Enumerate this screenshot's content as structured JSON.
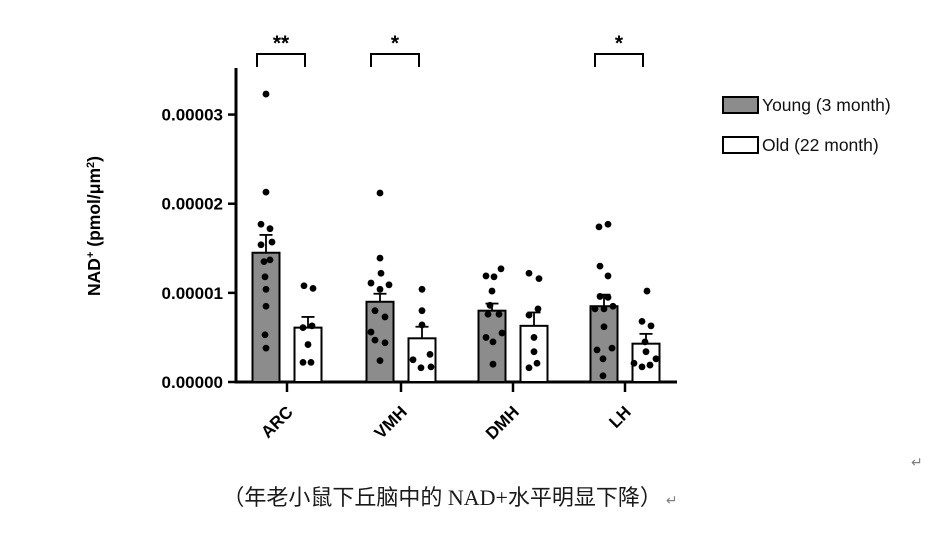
{
  "chart_data": {
    "type": "bar",
    "subtype": "grouped-bar-with-scatter-and-error-bars",
    "title": "",
    "xlabel": "",
    "ylabel": "NAD+ (pmol/μm²)",
    "ylabel_parts": [
      [
        "NAD",
        false
      ],
      [
        "+",
        true
      ],
      [
        " (pmol/μm",
        false
      ],
      [
        "2",
        true
      ],
      [
        ")",
        false
      ]
    ],
    "categories": [
      "ARC",
      "VMH",
      "DMH",
      "LH"
    ],
    "ylim": [
      0,
      3.5e-05
    ],
    "yticks": [
      {
        "value": 0.0,
        "label": "0.00000"
      },
      {
        "value": 1e-05,
        "label": "0.00001"
      },
      {
        "value": 2e-05,
        "label": "0.00002"
      },
      {
        "value": 3e-05,
        "label": "0.00003"
      }
    ],
    "grid": false,
    "legend_position": "right",
    "series": [
      {
        "name": "Young (3 month)",
        "fill": "#8c8c8c",
        "means": [
          1.45e-05,
          9e-06,
          8e-06,
          8.5e-06
        ],
        "sem": [
          2e-06,
          9e-07,
          8e-07,
          1.3e-06
        ],
        "points": [
          [
            [
              0,
              3.23e-05
            ],
            [
              0,
              2.13e-05
            ],
            [
              -5,
              1.77e-05
            ],
            [
              4,
              1.72e-05
            ],
            [
              6,
              1.57e-05
            ],
            [
              -5,
              1.54e-05
            ],
            [
              4,
              1.37e-05
            ],
            [
              -2,
              1.35e-05
            ],
            [
              -1,
              1.18e-05
            ],
            [
              0,
              1.04e-05
            ],
            [
              0,
              8.5e-06
            ],
            [
              -1,
              5.3e-06
            ],
            [
              0,
              3.8e-06
            ]
          ],
          [
            [
              0,
              2.12e-05
            ],
            [
              0,
              1.39e-05
            ],
            [
              1,
              1.22e-05
            ],
            [
              -9,
              1.11e-05
            ],
            [
              9,
              1.09e-05
            ],
            [
              0,
              1.04e-05
            ],
            [
              -5,
              8e-06
            ],
            [
              5,
              7.3e-06
            ],
            [
              -9,
              5.6e-06
            ],
            [
              -5,
              4.7e-06
            ],
            [
              5,
              4.4e-06
            ],
            [
              0,
              2.4e-06
            ]
          ],
          [
            [
              9,
              1.27e-05
            ],
            [
              -6,
              1.19e-05
            ],
            [
              2,
              1.18e-05
            ],
            [
              0,
              1.02e-05
            ],
            [
              -2,
              8.6e-06
            ],
            [
              -4,
              7.6e-06
            ],
            [
              7,
              7.6e-06
            ],
            [
              10,
              5.5e-06
            ],
            [
              -6,
              5e-06
            ],
            [
              1,
              4.5e-06
            ],
            [
              1,
              2e-06
            ]
          ],
          [
            [
              4,
              1.77e-05
            ],
            [
              -5,
              1.74e-05
            ],
            [
              -4,
              1.3e-05
            ],
            [
              4,
              1.19e-05
            ],
            [
              -4,
              9.6e-06
            ],
            [
              4,
              9.5e-06
            ],
            [
              9,
              8.5e-06
            ],
            [
              -9,
              8.2e-06
            ],
            [
              0,
              8.2e-06
            ],
            [
              0,
              6.2e-06
            ],
            [
              8,
              3.8e-06
            ],
            [
              -7,
              3.6e-06
            ],
            [
              -1,
              2.6e-06
            ],
            [
              -1,
              7e-07
            ]
          ]
        ]
      },
      {
        "name": "Old (22 month)",
        "fill": "#ffffff",
        "means": [
          6.1e-06,
          4.9e-06,
          6.3e-06,
          4.3e-06
        ],
        "sem": [
          1.2e-06,
          1.3e-06,
          1.5e-06,
          1.1e-06
        ],
        "points": [
          [
            [
              -4,
              1.08e-05
            ],
            [
              5,
              1.05e-05
            ],
            [
              4,
              6.3e-06
            ],
            [
              -5,
              6.1e-06
            ],
            [
              0,
              4.2e-06
            ],
            [
              -5,
              2.2e-06
            ],
            [
              3,
              2.2e-06
            ]
          ],
          [
            [
              0,
              1.04e-05
            ],
            [
              0,
              8e-06
            ],
            [
              0,
              6.4e-06
            ],
            [
              8,
              3.1e-06
            ],
            [
              -9,
              2.5e-06
            ],
            [
              9,
              1.7e-06
            ],
            [
              -1,
              1.6e-06
            ]
          ],
          [
            [
              -5,
              1.22e-05
            ],
            [
              5,
              1.16e-05
            ],
            [
              4,
              8.2e-06
            ],
            [
              -5,
              7.5e-06
            ],
            [
              0,
              5e-06
            ],
            [
              0,
              3.4e-06
            ],
            [
              3,
              2.1e-06
            ],
            [
              -5,
              1.6e-06
            ]
          ],
          [
            [
              1,
              1.02e-05
            ],
            [
              -4,
              6.8e-06
            ],
            [
              5,
              6.3e-06
            ],
            [
              -1,
              4.5e-06
            ],
            [
              0,
              3.4e-06
            ],
            [
              10,
              2.6e-06
            ],
            [
              -12,
              2.1e-06
            ],
            [
              4,
              1.9e-06
            ],
            [
              -4,
              1.7e-06
            ]
          ]
        ]
      }
    ],
    "significance": [
      {
        "category": "ARC",
        "label": "**"
      },
      {
        "category": "VMH",
        "label": "*"
      },
      {
        "category": "LH",
        "label": "*"
      }
    ],
    "colors": {
      "bar_young": "#8c8c8c",
      "bar_old": "#ffffff",
      "stroke": "#000000",
      "dot": "#000000"
    }
  },
  "legend": {
    "items": [
      {
        "label": "Young (3 month)",
        "fill": "#8c8c8c"
      },
      {
        "label": "Old (22 month)",
        "fill": "#ffffff"
      }
    ]
  },
  "caption": {
    "text": "（年老小鼠下丘脑中的 NAD+水平明显下降）",
    "return_mark": "↵"
  },
  "page": {
    "paragraph_mark": "↵"
  }
}
